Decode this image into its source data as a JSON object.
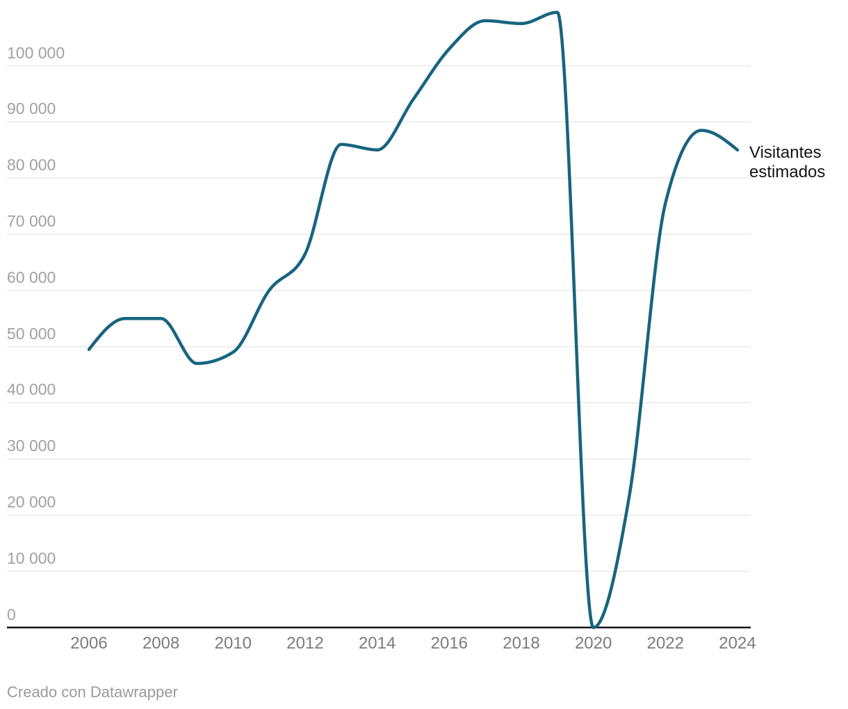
{
  "chart_data": {
    "type": "line",
    "title": "",
    "series": [
      {
        "name": "Visitantes estimados",
        "x": [
          2006,
          2007,
          2008,
          2009,
          2010,
          2011,
          2012,
          2013,
          2014,
          2015,
          2016,
          2017,
          2018,
          2019,
          2020,
          2021,
          2022,
          2023,
          2024
        ],
        "values": [
          49500,
          55000,
          55000,
          47000,
          49000,
          60000,
          66500,
          86000,
          85000,
          94000,
          103000,
          108000,
          107500,
          109500,
          0,
          23500,
          75500,
          88500,
          85000
        ]
      }
    ],
    "xlim": [
      2006,
      2024
    ],
    "ylim": [
      0,
      100000
    ],
    "x_ticks": [
      {
        "x": 2006,
        "label": "2006"
      },
      {
        "x": 2008,
        "label": "2008"
      },
      {
        "x": 2010,
        "label": "2010"
      },
      {
        "x": 2012,
        "label": "2012"
      },
      {
        "x": 2014,
        "label": "2014"
      },
      {
        "x": 2016,
        "label": "2016"
      },
      {
        "x": 2018,
        "label": "2018"
      },
      {
        "x": 2020,
        "label": "2020"
      },
      {
        "x": 2022,
        "label": "2022"
      },
      {
        "x": 2024,
        "label": "2024"
      }
    ],
    "y_ticks": [
      {
        "value": 0,
        "label": "0"
      },
      {
        "value": 10000,
        "label": "10 000"
      },
      {
        "value": 20000,
        "label": "20 000"
      },
      {
        "value": 30000,
        "label": "30 000"
      },
      {
        "value": 40000,
        "label": "40 000"
      },
      {
        "value": 50000,
        "label": "50 000"
      },
      {
        "value": 60000,
        "label": "60 000"
      },
      {
        "value": 70000,
        "label": "70 000"
      },
      {
        "value": 80000,
        "label": "80 000"
      },
      {
        "value": 90000,
        "label": "90 000"
      },
      {
        "value": 100000,
        "label": "100 000"
      }
    ],
    "grid": "horizontal",
    "legend_position": "right-annotation",
    "interpolation": "monotone-x",
    "colors": {
      "line": "#176480",
      "gridline": "#e8e8e8",
      "axis": "#151515"
    }
  },
  "annotation": {
    "series_label": "Visitantes estimados"
  },
  "footer": {
    "attribution": "Creado con Datawrapper"
  }
}
